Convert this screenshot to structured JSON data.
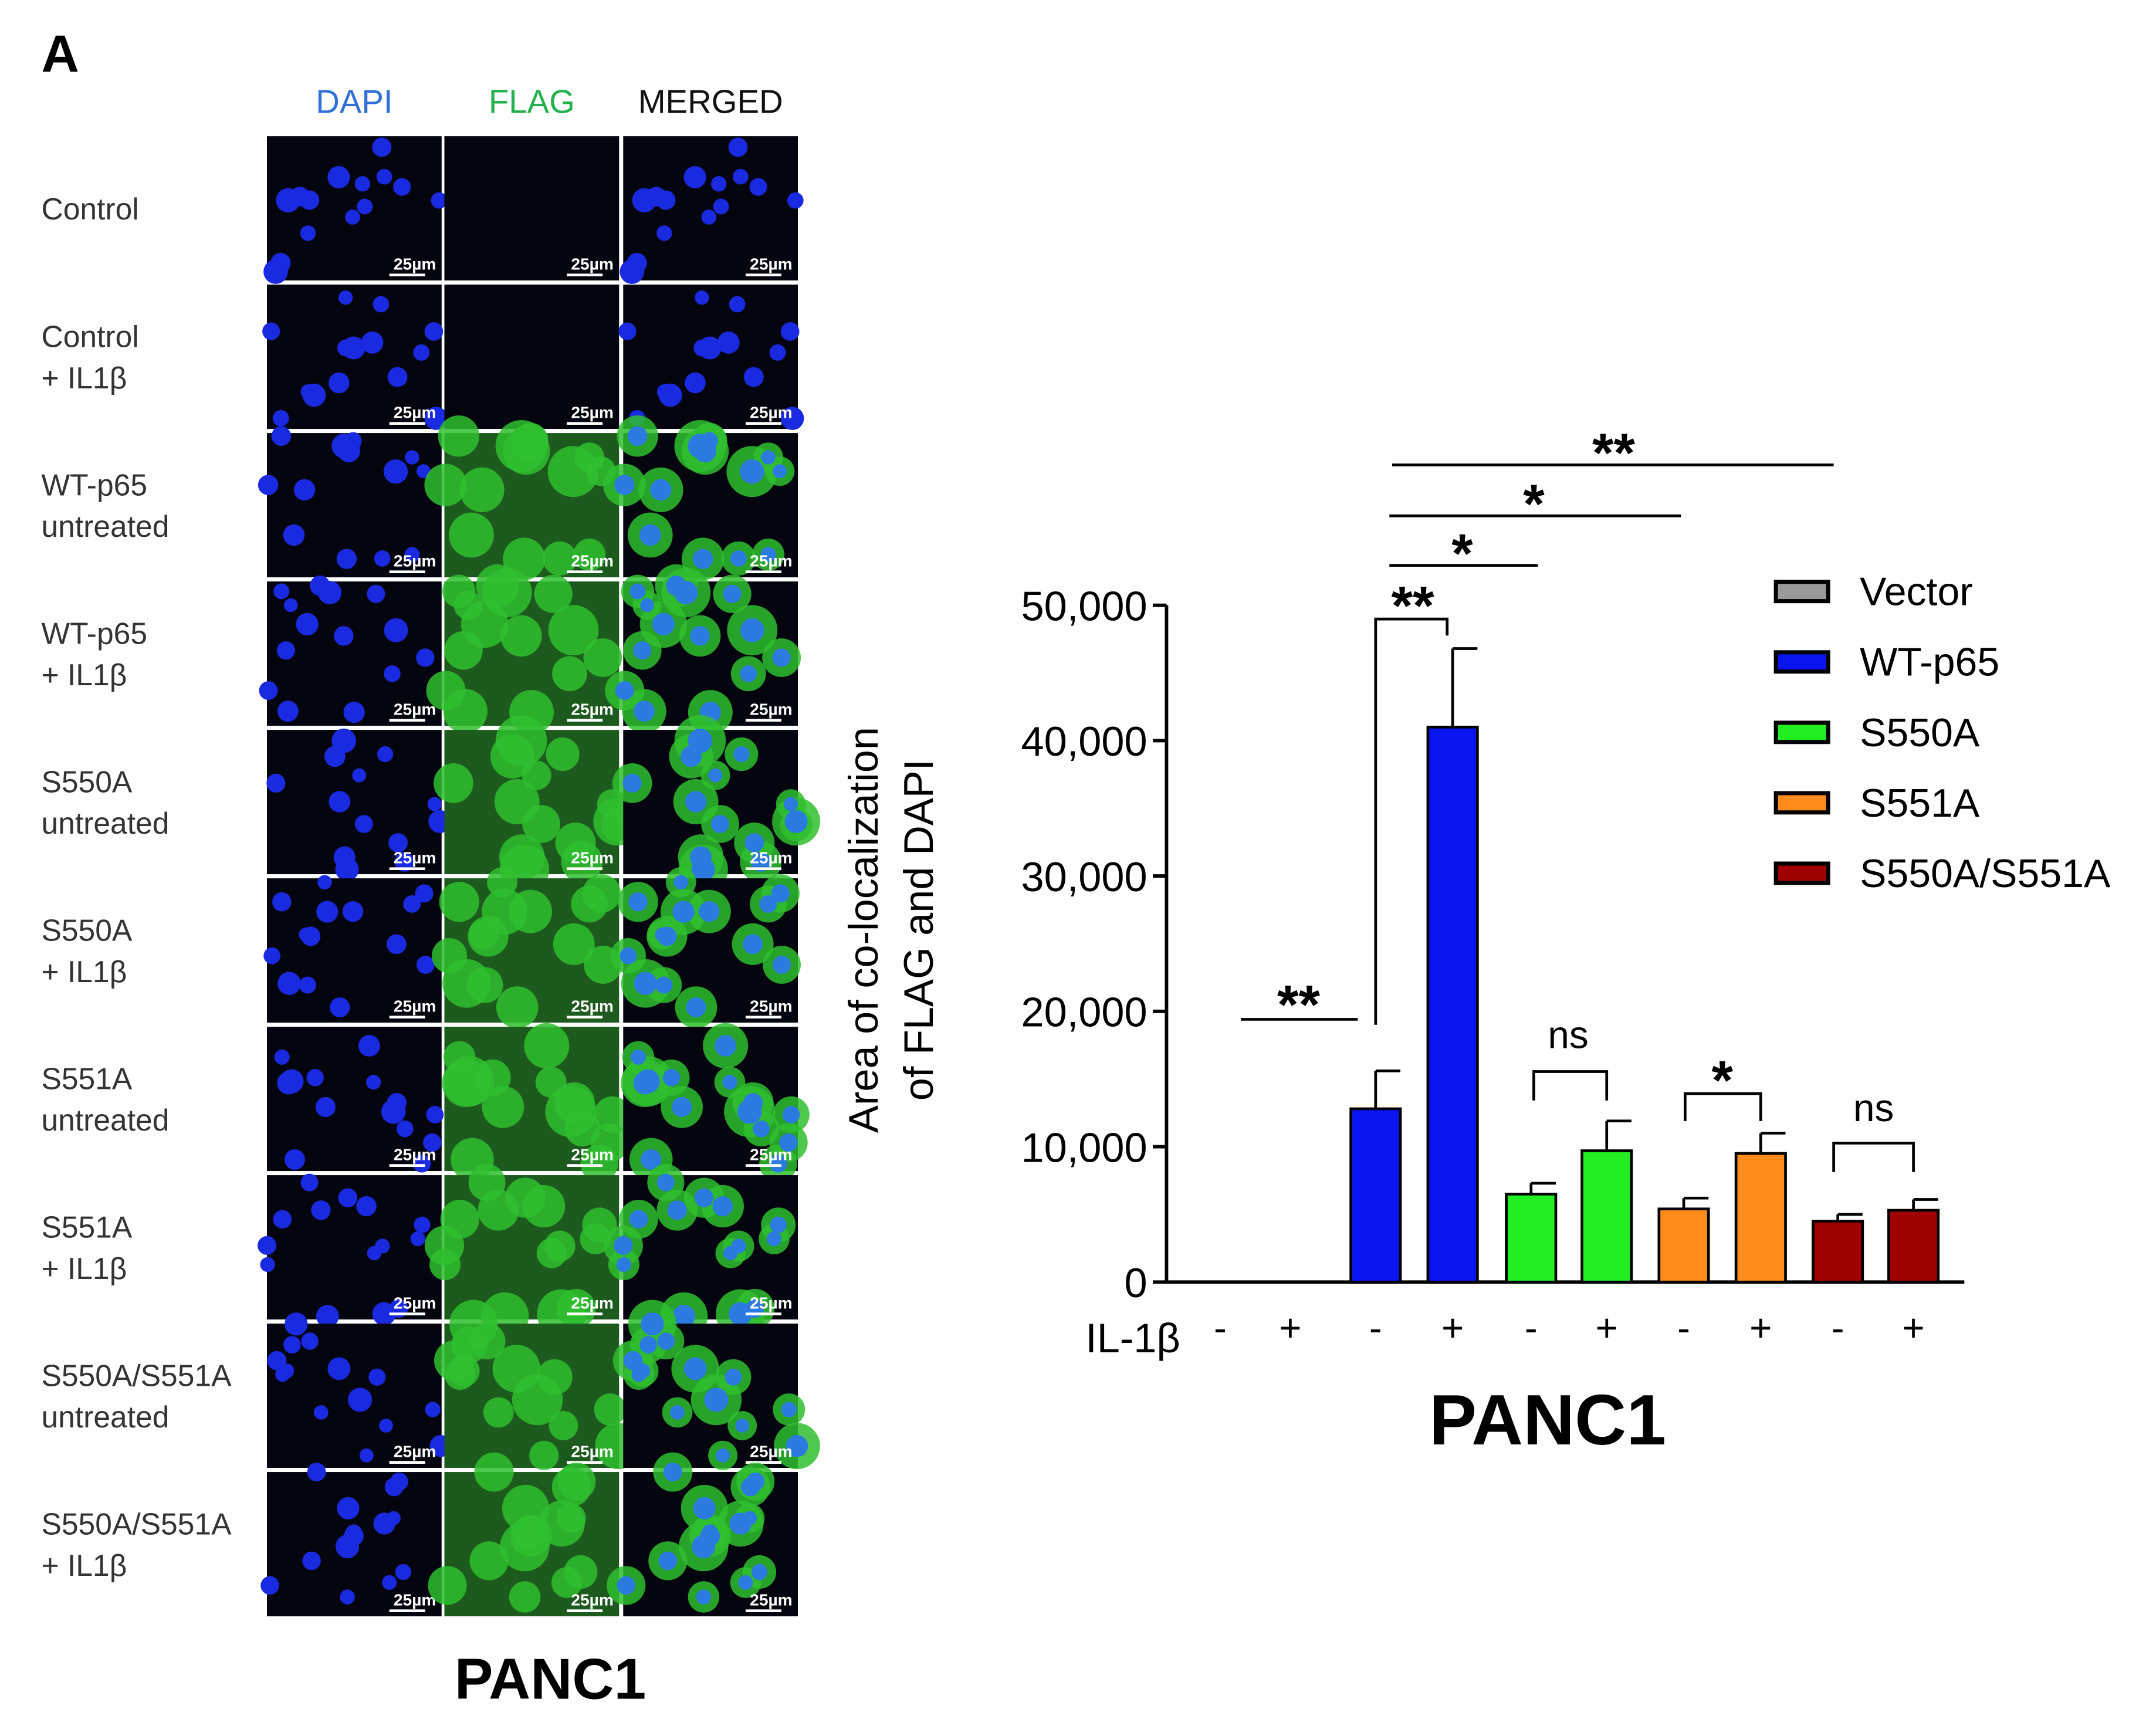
{
  "panel_label": "A",
  "micrographs": {
    "columns": [
      "DAPI",
      "FLAG",
      "MERGED"
    ],
    "rows": [
      [
        "Control"
      ],
      [
        "Control",
        "+ IL1β"
      ],
      [
        "WT-p65",
        "untreated"
      ],
      [
        "WT-p65",
        "+ IL1β"
      ],
      [
        "S550A",
        "untreated"
      ],
      [
        "S550A",
        "+ IL1β"
      ],
      [
        "S551A",
        "untreated"
      ],
      [
        "S551A",
        "+ IL1β"
      ],
      [
        "S550A/S551A",
        "untreated"
      ],
      [
        "S550A/S551A",
        "+ IL1β"
      ]
    ],
    "scale_bar": "25µm",
    "caption": "PANC1"
  },
  "chart_data": {
    "type": "bar",
    "ylabel": [
      "Area of co-localization",
      "of FLAG and DAPI"
    ],
    "xlabel": "PANC1",
    "x_row_label": "IL-1β",
    "categories": [
      "-",
      "+",
      "-",
      "+",
      "-",
      "+",
      "-",
      "+",
      "-",
      "+"
    ],
    "series": [
      {
        "name": "Vector",
        "color": "#9a9a9a",
        "values": [
          0,
          0,
          null,
          null,
          null,
          null,
          null,
          null,
          null,
          null
        ],
        "errors": [
          0,
          0,
          null,
          null,
          null,
          null,
          null,
          null,
          null,
          null
        ]
      },
      {
        "name": "WT-p65",
        "color": "#0a14f0",
        "values": [
          null,
          null,
          12800,
          41000,
          null,
          null,
          null,
          null,
          null,
          null
        ],
        "errors": [
          null,
          null,
          2800,
          5800,
          null,
          null,
          null,
          null,
          null,
          null
        ]
      },
      {
        "name": "S550A",
        "color": "#22ee22",
        "values": [
          null,
          null,
          null,
          null,
          6500,
          9700,
          null,
          null,
          null,
          null
        ],
        "errors": [
          null,
          null,
          null,
          null,
          800,
          2200,
          null,
          null,
          null,
          null
        ]
      },
      {
        "name": "S551A",
        "color": "#ff8c1a",
        "values": [
          null,
          null,
          null,
          null,
          null,
          null,
          5400,
          9500,
          null,
          null
        ],
        "errors": [
          null,
          null,
          null,
          null,
          null,
          null,
          800,
          1500,
          null,
          null
        ]
      },
      {
        "name": "S550A/S551A",
        "color": "#a00000",
        "values": [
          null,
          null,
          null,
          null,
          null,
          null,
          null,
          null,
          4500,
          5300
        ],
        "errors": [
          null,
          null,
          null,
          null,
          null,
          null,
          null,
          null,
          500,
          800
        ]
      }
    ],
    "ylim": [
      0,
      50000
    ],
    "yticks": [
      0,
      {
        "value": 10000,
        "label": "10,000"
      },
      {
        "value": 20000,
        "label": "20,000"
      },
      {
        "value": 30000,
        "label": "30,000"
      },
      {
        "value": 40000,
        "label": "40,000"
      },
      {
        "value": 50000,
        "label": "50,000"
      }
    ],
    "annotations": [
      "**",
      "**",
      "*",
      "*",
      "**",
      "ns",
      "*",
      "ns"
    ]
  }
}
